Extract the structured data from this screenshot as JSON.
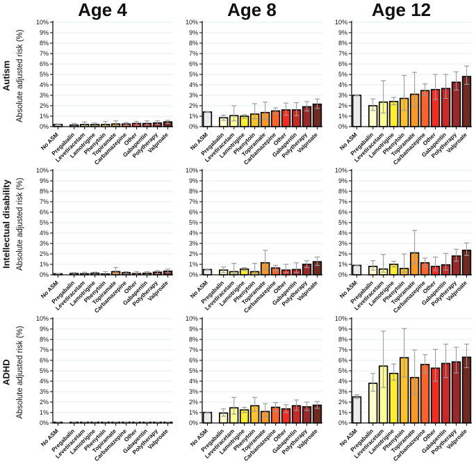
{
  "figure_title": "",
  "columns": [
    "Age 4",
    "Age 8",
    "Age 12"
  ],
  "rows": [
    "Autism",
    "Intellectual disability",
    "ADHD"
  ],
  "ylabel": "Absolute adjusted risk (%)",
  "yticks": [
    "0%",
    "1%",
    "2%",
    "3%",
    "4%",
    "5%",
    "6%",
    "7%",
    "8%",
    "9%",
    "10%"
  ],
  "categories": [
    "No ASM",
    "Pregabalin",
    "Levetiracetam",
    "Lamotrigine",
    "Phenytoin",
    "Topiramate",
    "Carbamazepine",
    "Other",
    "Gabapentin",
    "Polytherapy",
    "Valproate"
  ],
  "colors": {
    "bars": [
      "#ebebeb",
      "#ffffcc",
      "#ffff99",
      "#ffec33",
      "#fcc12e",
      "#f9992b",
      "#f7642c",
      "#ee2e24",
      "#c62c27",
      "#97292a",
      "#6e2a23"
    ],
    "bar_outline": "#0a0a0a",
    "error_bar": "#9b9b9b",
    "gridline": "#e3edf0",
    "axis": "#111111"
  },
  "chart_data": [
    {
      "type": "bar",
      "row": "Autism",
      "col": "Age 4",
      "ylabel": "Absolute adjusted risk (%)",
      "ylim": [
        0,
        10
      ],
      "categories": [
        "No ASM",
        "Pregabalin",
        "Levetiracetam",
        "Lamotrigine",
        "Phenytoin",
        "Topiramate",
        "Carbamazepine",
        "Other",
        "Gabapentin",
        "Polytherapy",
        "Valproate"
      ],
      "values": [
        0.2,
        0.15,
        0.2,
        0.2,
        0.2,
        0.25,
        0.25,
        0.3,
        0.3,
        0.35,
        0.45
      ],
      "err_low": [
        0.15,
        0.05,
        0.08,
        0.1,
        0.05,
        0.1,
        0.15,
        0.15,
        0.15,
        0.2,
        0.3
      ],
      "err_high": [
        0.25,
        0.3,
        0.45,
        0.35,
        0.5,
        0.55,
        0.4,
        0.5,
        0.55,
        0.55,
        0.6
      ]
    },
    {
      "type": "bar",
      "row": "Autism",
      "col": "Age 8",
      "ylabel": "Absolute adjusted risk (%)",
      "ylim": [
        0,
        10
      ],
      "categories": [
        "No ASM",
        "Pregabalin",
        "Levetiracetam",
        "Lamotrigine",
        "Phenytoin",
        "Topiramate",
        "Carbamazepine",
        "Other",
        "Gabapentin",
        "Polytherapy",
        "Valproate"
      ],
      "values": [
        1.4,
        0.85,
        1.05,
        1.0,
        1.2,
        1.35,
        1.5,
        1.6,
        1.6,
        1.9,
        2.15
      ],
      "err_low": [
        1.35,
        0.6,
        0.55,
        0.8,
        0.75,
        0.7,
        1.2,
        1.1,
        1.05,
        1.5,
        1.75
      ],
      "err_high": [
        1.45,
        1.1,
        2.0,
        1.15,
        2.2,
        2.35,
        1.8,
        2.25,
        2.3,
        2.4,
        2.65
      ]
    },
    {
      "type": "bar",
      "row": "Autism",
      "col": "Age 12",
      "ylabel": "Absolute adjusted risk (%)",
      "ylim": [
        0,
        10
      ],
      "categories": [
        "No ASM",
        "Pregabalin",
        "Levetiracetam",
        "Lamotrigine",
        "Phenytoin",
        "Topiramate",
        "Carbamazepine",
        "Other",
        "Gabapentin",
        "Polytherapy",
        "Valproate"
      ],
      "values": [
        3.0,
        2.0,
        2.35,
        2.4,
        2.7,
        3.1,
        3.45,
        3.55,
        3.65,
        4.25,
        4.8
      ],
      "err_low": [
        2.95,
        1.55,
        1.3,
        2.1,
        1.55,
        1.9,
        3.0,
        2.6,
        2.7,
        3.5,
        4.05
      ],
      "err_high": [
        3.05,
        2.65,
        4.4,
        2.8,
        4.9,
        5.2,
        4.1,
        5.0,
        5.0,
        5.25,
        5.8
      ]
    },
    {
      "type": "bar",
      "row": "Intellectual disability",
      "col": "Age 4",
      "ylabel": "Absolute adjusted risk (%)",
      "ylim": [
        0,
        10
      ],
      "categories": [
        "No ASM",
        "Pregabalin",
        "Levetiracetam",
        "Lamotrigine",
        "Phenytoin",
        "Topiramate",
        "Carbamazepine",
        "Other",
        "Gabapentin",
        "Polytherapy",
        "Valproate"
      ],
      "values": [
        0.1,
        0.12,
        0.1,
        0.15,
        0.08,
        0.3,
        0.2,
        0.12,
        0.15,
        0.25,
        0.35
      ],
      "err_low": [
        0.08,
        0.05,
        0.02,
        0.05,
        0.02,
        0.1,
        0.1,
        0.05,
        0.05,
        0.12,
        0.2
      ],
      "err_high": [
        0.12,
        0.2,
        0.25,
        0.25,
        0.3,
        0.7,
        0.3,
        0.3,
        0.3,
        0.4,
        0.55
      ]
    },
    {
      "type": "bar",
      "row": "Intellectual disability",
      "col": "Age 8",
      "ylabel": "Absolute adjusted risk (%)",
      "ylim": [
        0,
        10
      ],
      "categories": [
        "No ASM",
        "Pregabalin",
        "Levetiracetam",
        "Lamotrigine",
        "Phenytoin",
        "Topiramate",
        "Carbamazepine",
        "Other",
        "Gabapentin",
        "Polytherapy",
        "Valproate"
      ],
      "values": [
        0.5,
        0.45,
        0.3,
        0.55,
        0.3,
        1.15,
        0.65,
        0.45,
        0.5,
        1.0,
        1.25
      ],
      "err_low": [
        0.45,
        0.2,
        0.1,
        0.4,
        0.05,
        0.5,
        0.4,
        0.2,
        0.2,
        0.7,
        0.9
      ],
      "err_high": [
        0.55,
        0.75,
        1.1,
        0.7,
        1.1,
        2.35,
        0.9,
        1.0,
        1.15,
        1.35,
        1.7
      ]
    },
    {
      "type": "bar",
      "row": "Intellectual disability",
      "col": "Age 12",
      "ylabel": "Absolute adjusted risk (%)",
      "ylim": [
        0,
        10
      ],
      "categories": [
        "No ASM",
        "Pregabalin",
        "Levetiracetam",
        "Lamotrigine",
        "Phenytoin",
        "Topiramate",
        "Carbamazepine",
        "Other",
        "Gabapentin",
        "Polytherapy",
        "Valproate"
      ],
      "values": [
        0.9,
        0.8,
        0.55,
        1.0,
        0.6,
        2.1,
        1.15,
        0.8,
        0.95,
        1.8,
        2.35
      ],
      "err_low": [
        0.85,
        0.45,
        0.25,
        0.75,
        0.25,
        1.05,
        0.8,
        0.4,
        0.45,
        1.3,
        1.85
      ],
      "err_high": [
        0.95,
        1.35,
        1.95,
        1.3,
        2.0,
        4.25,
        1.6,
        1.7,
        2.05,
        2.45,
        3.05
      ]
    },
    {
      "type": "bar",
      "row": "ADHD",
      "col": "Age 4",
      "ylabel": "Absolute adjusted risk (%)",
      "ylim": [
        0,
        10
      ],
      "categories": [
        "No ASM",
        "Pregabalin",
        "Levetiracetam",
        "Lamotrigine",
        "Phenytoin",
        "Topiramate",
        "Carbamazepine",
        "Other",
        "Gabapentin",
        "Polytherapy",
        "Valproate"
      ],
      "values": [
        0.07,
        0.07,
        0.07,
        0.07,
        0.07,
        0.07,
        0.07,
        0.07,
        0.07,
        0.07,
        0.07
      ],
      "err_low": [
        0.05,
        0.04,
        0.04,
        0.04,
        0.04,
        0.04,
        0.04,
        0.04,
        0.04,
        0.04,
        0.04
      ],
      "err_high": [
        0.09,
        0.1,
        0.1,
        0.1,
        0.1,
        0.1,
        0.1,
        0.1,
        0.1,
        0.1,
        0.1
      ]
    },
    {
      "type": "bar",
      "row": "ADHD",
      "col": "Age 8",
      "ylabel": "Absolute adjusted risk (%)",
      "ylim": [
        0,
        10
      ],
      "categories": [
        "No ASM",
        "Pregabalin",
        "Levetiracetam",
        "Lamotrigine",
        "Phenytoin",
        "Topiramate",
        "Carbamazepine",
        "Other",
        "Gabapentin",
        "Polytherapy",
        "Valproate"
      ],
      "values": [
        1.0,
        0.95,
        1.45,
        1.25,
        1.65,
        1.1,
        1.5,
        1.35,
        1.65,
        1.55,
        1.7
      ],
      "err_low": [
        0.95,
        0.65,
        0.85,
        1.0,
        1.1,
        0.6,
        1.1,
        1.0,
        1.2,
        1.2,
        1.4
      ],
      "err_high": [
        1.05,
        1.35,
        2.45,
        1.5,
        2.45,
        1.85,
        1.95,
        1.75,
        2.2,
        2.0,
        2.05
      ]
    },
    {
      "type": "bar",
      "row": "ADHD",
      "col": "Age 12",
      "ylabel": "Absolute adjusted risk (%)",
      "ylim": [
        0,
        10
      ],
      "categories": [
        "No ASM",
        "Pregabalin",
        "Levetiracetam",
        "Lamotrigine",
        "Phenytoin",
        "Topiramate",
        "Carbamazepine",
        "Other",
        "Gabapentin",
        "Polytherapy",
        "Valproate"
      ],
      "values": [
        2.5,
        3.8,
        5.45,
        4.75,
        6.25,
        4.35,
        5.6,
        5.25,
        5.7,
        5.85,
        6.3
      ],
      "err_low": [
        2.35,
        3.05,
        3.4,
        4.1,
        4.4,
        2.7,
        4.8,
        4.0,
        4.35,
        4.8,
        5.3
      ],
      "err_high": [
        2.7,
        4.75,
        8.8,
        5.65,
        9.05,
        7.0,
        6.55,
        7.05,
        7.55,
        7.25,
        7.55
      ]
    }
  ]
}
